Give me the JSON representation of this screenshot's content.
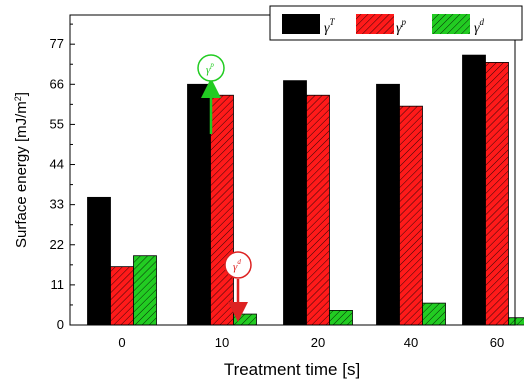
{
  "chart_data": {
    "type": "bar",
    "categories": [
      "0",
      "10",
      "20",
      "40",
      "60"
    ],
    "series": [
      {
        "name": "γ",
        "sup": "T",
        "color": "#000000",
        "hatch": false,
        "values": [
          35,
          66,
          67,
          66,
          74
        ]
      },
      {
        "name": "γ",
        "sup": "p",
        "color": "#ff1a1a",
        "hatch": true,
        "values": [
          16,
          63,
          63,
          60,
          72
        ]
      },
      {
        "name": "γ",
        "sup": "d",
        "color": "#22cc22",
        "hatch": true,
        "values": [
          19,
          3,
          4,
          6,
          2
        ]
      }
    ],
    "xlabel": "Treatment time [s]",
    "ylabel": "Surface energy [mJ/m",
    "ylabel_sup": "2",
    "ylabel_end": "]",
    "ylim": [
      0,
      85
    ],
    "yticks": [
      "0",
      "11",
      "22",
      "33",
      "44",
      "55",
      "66",
      "77"
    ],
    "grid": false,
    "legend_position": "top-right",
    "annotations": [
      {
        "symbol": "γ",
        "sup": "p",
        "color": "#22cc22",
        "direction": "up",
        "category": "10"
      },
      {
        "symbol": "γ",
        "sup": "d",
        "color": "#dd2222",
        "direction": "down",
        "category": "10"
      }
    ]
  }
}
